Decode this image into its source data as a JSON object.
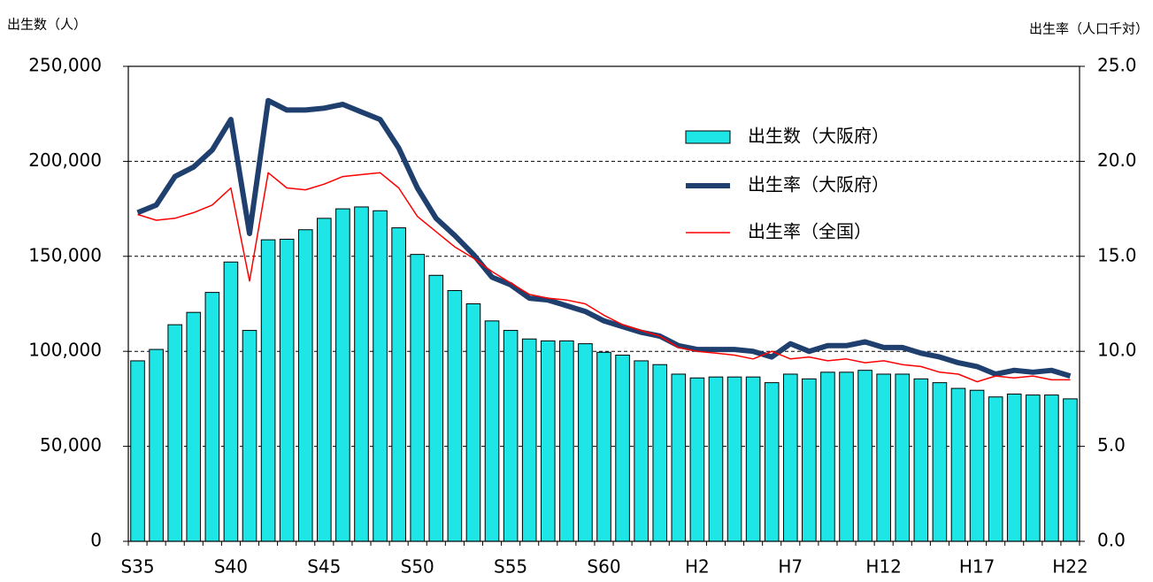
{
  "chart_data": {
    "type": "bar",
    "y_label": "出生数（人）",
    "y2_label": "出生率（人口千対）",
    "categories": [
      "S35",
      null,
      null,
      null,
      null,
      "S40",
      null,
      null,
      null,
      null,
      "S45",
      null,
      null,
      null,
      null,
      "S50",
      null,
      null,
      null,
      null,
      "S55",
      null,
      null,
      null,
      null,
      "S60",
      null,
      null,
      null,
      null,
      "H2",
      null,
      null,
      null,
      null,
      "H7",
      null,
      null,
      null,
      null,
      "H12",
      null,
      null,
      null,
      null,
      "H17",
      null,
      null,
      null,
      null,
      "H22"
    ],
    "series": [
      {
        "name": "出生数（大阪府）",
        "type": "bar",
        "color": "#1ee6e6",
        "values": [
          95000,
          101000,
          114000,
          120500,
          131000,
          147000,
          111000,
          158700,
          159000,
          164000,
          170000,
          175000,
          176000,
          174000,
          165000,
          151000,
          140000,
          132000,
          125000,
          116000,
          111000,
          106500,
          105500,
          105500,
          104000,
          99500,
          98000,
          95000,
          93000,
          88000,
          86000,
          86500,
          86500,
          86500,
          83500,
          88000,
          85500,
          89000,
          89000,
          90000,
          88000,
          88000,
          85500,
          83500,
          80500,
          79500,
          76000,
          77500,
          77000,
          77000,
          75000
        ]
      },
      {
        "name": "出生率（大阪府）",
        "type": "line",
        "axis": "y2",
        "color": "#1f3f6e",
        "values": [
          17.3,
          17.7,
          19.2,
          19.7,
          20.6,
          22.2,
          16.2,
          23.2,
          22.7,
          22.7,
          22.8,
          23.0,
          22.6,
          22.2,
          20.7,
          18.6,
          17.0,
          16.1,
          15.1,
          13.9,
          13.5,
          12.8,
          12.7,
          12.4,
          12.1,
          11.6,
          11.3,
          11.0,
          10.8,
          10.3,
          10.1,
          10.1,
          10.1,
          10.0,
          9.7,
          10.4,
          10.0,
          10.3,
          10.3,
          10.5,
          10.2,
          10.2,
          9.9,
          9.7,
          9.4,
          9.2,
          8.8,
          9.0,
          8.9,
          9.0,
          8.7
        ]
      },
      {
        "name": "出生率（全国）",
        "type": "line",
        "axis": "y2",
        "color": "#ff0000",
        "values": [
          17.2,
          16.9,
          17.0,
          17.3,
          17.7,
          18.6,
          13.7,
          19.4,
          18.6,
          18.5,
          18.8,
          19.2,
          19.3,
          19.4,
          18.6,
          17.1,
          16.3,
          15.5,
          14.9,
          14.2,
          13.6,
          13.0,
          12.8,
          12.7,
          12.5,
          11.9,
          11.4,
          11.1,
          10.8,
          10.2,
          10.0,
          9.9,
          9.8,
          9.6,
          10.0,
          9.6,
          9.7,
          9.5,
          9.6,
          9.4,
          9.5,
          9.3,
          9.2,
          8.9,
          8.8,
          8.4,
          8.7,
          8.6,
          8.7,
          8.5,
          8.5
        ]
      }
    ],
    "ylim": [
      0,
      250000
    ],
    "yticks": [
      0,
      {
        "value": 50000,
        "label": "50,000"
      },
      {
        "value": 100000,
        "label": "100,000"
      },
      {
        "value": 150000,
        "label": "150,000"
      },
      {
        "value": 200000,
        "label": "200,000"
      },
      {
        "value": 250000,
        "label": "250,000"
      }
    ],
    "y2lim": [
      0,
      25
    ],
    "y2ticks": [
      {
        "value": 0,
        "label": "0.0"
      },
      {
        "value": 5,
        "label": "5.0"
      },
      {
        "value": 10,
        "label": "10.0"
      },
      {
        "value": 15,
        "label": "15.0"
      },
      {
        "value": 20,
        "label": "20.0"
      },
      {
        "value": 25,
        "label": "25.0"
      }
    ],
    "grid": true
  }
}
